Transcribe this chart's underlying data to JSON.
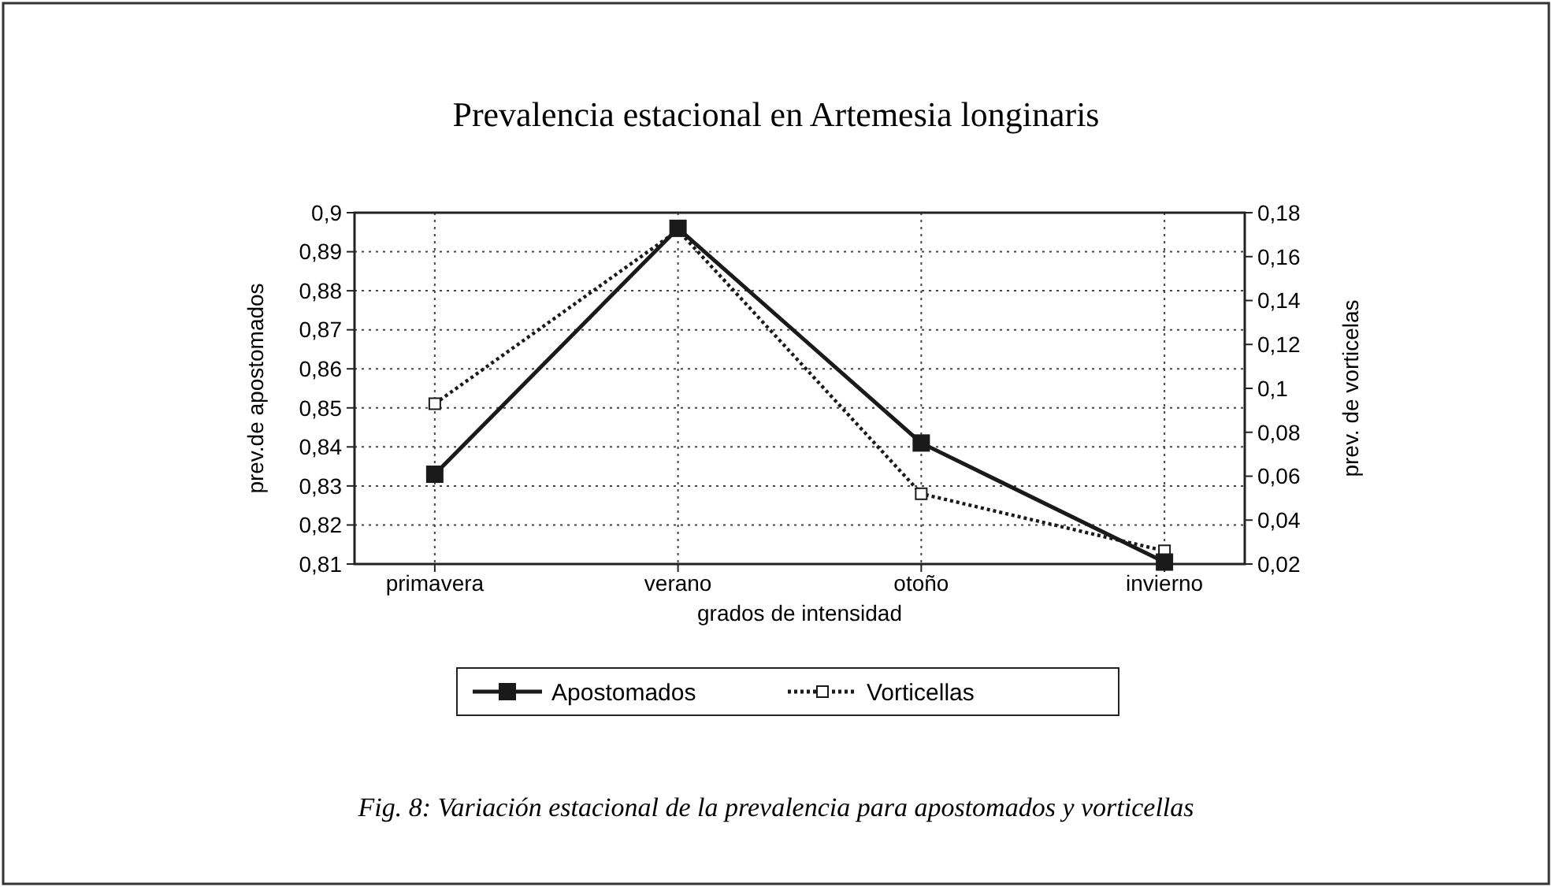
{
  "chart_data": {
    "type": "line",
    "title": "Prevalencia estacional en Artemesia longinaris",
    "xlabel": "grados de intensidad",
    "ylabel": "prev.de apostomados",
    "y2label": "prev. de vorticelas",
    "categories": [
      "primavera",
      "verano",
      "otoño",
      "invierno"
    ],
    "series": [
      {
        "name": "Apostomados",
        "color": "#1a1a1a",
        "values": [
          0.833,
          0.896,
          0.841,
          0.8105
        ],
        "line_style": "solid"
      },
      {
        "name": "Vorticellas",
        "color": "#1a1a1a",
        "values": [
          0.093,
          0.172,
          0.052,
          0.026
        ],
        "axis": "y2",
        "line_style": "dotted"
      }
    ],
    "ylim": [
      0.81,
      0.9
    ],
    "yticks": [
      {
        "value": 0.81,
        "label": "0,81"
      },
      {
        "value": 0.82,
        "label": "0,82"
      },
      {
        "value": 0.83,
        "label": "0,83"
      },
      {
        "value": 0.84,
        "label": "0,84"
      },
      {
        "value": 0.85,
        "label": "0,85"
      },
      {
        "value": 0.86,
        "label": "0,86"
      },
      {
        "value": 0.87,
        "label": "0,87"
      },
      {
        "value": 0.88,
        "label": "0,88"
      },
      {
        "value": 0.89,
        "label": "0,89"
      },
      {
        "value": 0.9,
        "label": "0,9"
      }
    ],
    "y2lim": [
      0.02,
      0.18
    ],
    "y2ticks": [
      {
        "value": 0.02,
        "label": "0,02"
      },
      {
        "value": 0.04,
        "label": "0,04"
      },
      {
        "value": 0.06,
        "label": "0,06"
      },
      {
        "value": 0.08,
        "label": "0,08"
      },
      {
        "value": 0.1,
        "label": "0,1"
      },
      {
        "value": 0.12,
        "label": "0,12"
      },
      {
        "value": 0.14,
        "label": "0,14"
      },
      {
        "value": 0.16,
        "label": "0,16"
      },
      {
        "value": 0.18,
        "label": "0,18"
      }
    ],
    "grid": true,
    "legend": "bottom",
    "marker": "square",
    "annotations": [
      "Fig. 8: Variación estacional de la prevalencia para apostomados y vorticellas"
    ]
  }
}
